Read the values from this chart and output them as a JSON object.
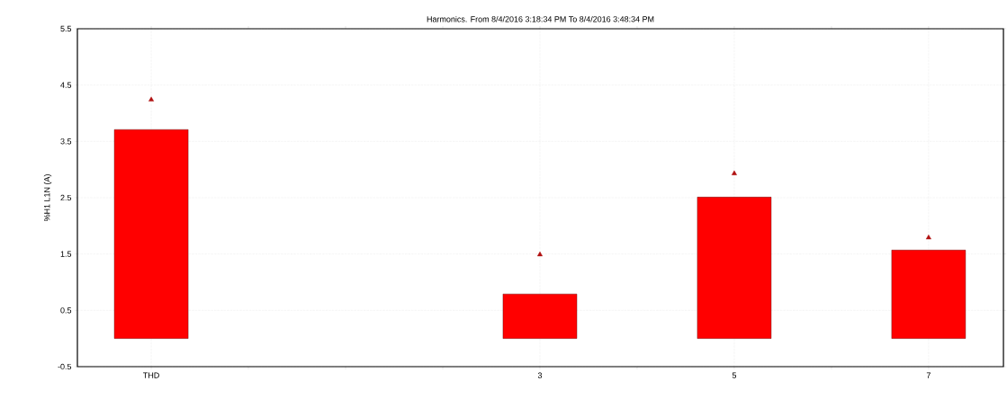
{
  "chart_data": {
    "type": "bar",
    "title": "Harmonics. From 8/4/2016 3:18:34 PM To 8/4/2016 3:48:34 PM",
    "ylabel": "%H1 L1N (A)",
    "categories": [
      "THD",
      null,
      null,
      null,
      "3",
      null,
      "5",
      null,
      "7"
    ],
    "series": [
      {
        "color": "#ff0000",
        "values": [
          3.71,
          null,
          null,
          null,
          0.79,
          null,
          2.51,
          null,
          1.57
        ]
      },
      {
        "type": "scatter",
        "color": "#b01010",
        "values": [
          4.24,
          null,
          null,
          null,
          1.49,
          null,
          2.93,
          null,
          1.79
        ]
      }
    ],
    "marker": "triangle",
    "ylim": [
      -0.5,
      5.5
    ],
    "yticks": [
      -0.5,
      0.5,
      1.5,
      2.5,
      3.5,
      4.5,
      5.5
    ],
    "grid": true
  }
}
